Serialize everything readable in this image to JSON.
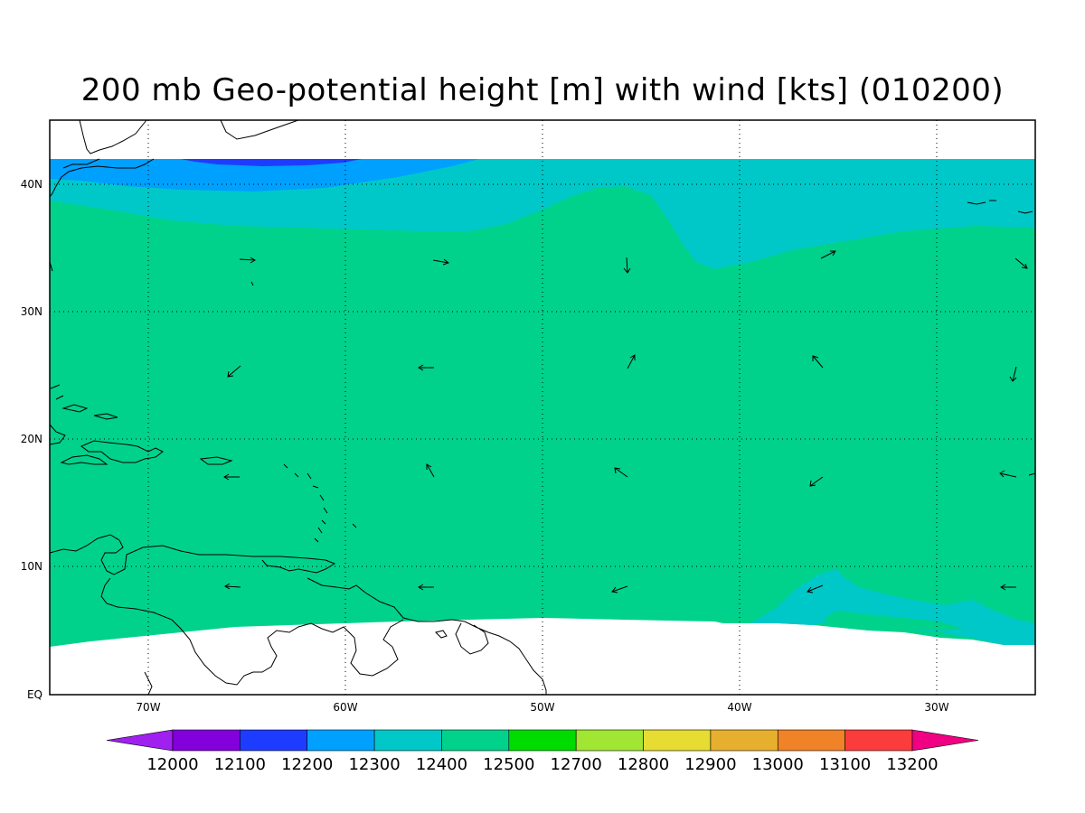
{
  "title": "200 mb Geo-potential height [m] with wind [kts] (010200)",
  "map": {
    "lon_range": [
      "75W",
      "25W"
    ],
    "lat_range": [
      "EQ",
      "45N"
    ],
    "lat_ticks": [
      "EQ",
      "10N",
      "20N",
      "30N",
      "40N"
    ],
    "lon_ticks": [
      "70W",
      "60W",
      "50W",
      "40W",
      "30W"
    ],
    "grid": "dotted",
    "data_coverage": "approx. 5N to 42N"
  },
  "legend": {
    "labels": [
      "12000",
      "12100",
      "12200",
      "12300",
      "12400",
      "12500",
      "12700",
      "12800",
      "12900",
      "13000",
      "13100",
      "13200"
    ],
    "colors": [
      "#a020f0",
      "#8200dc",
      "#1e3cff",
      "#00a0ff",
      "#00c8c8",
      "#00d28c",
      "#00dc00",
      "#a0e632",
      "#e6dc32",
      "#e6af2d",
      "#f08228",
      "#fa3c3c",
      "#f00082"
    ]
  },
  "fill_colors": {
    "12200_12300": "#1e3cff",
    "12300_12400": "#00a0ff",
    "12400_12500": "#00c8c8",
    "12500_12700": "#00d28c"
  }
}
